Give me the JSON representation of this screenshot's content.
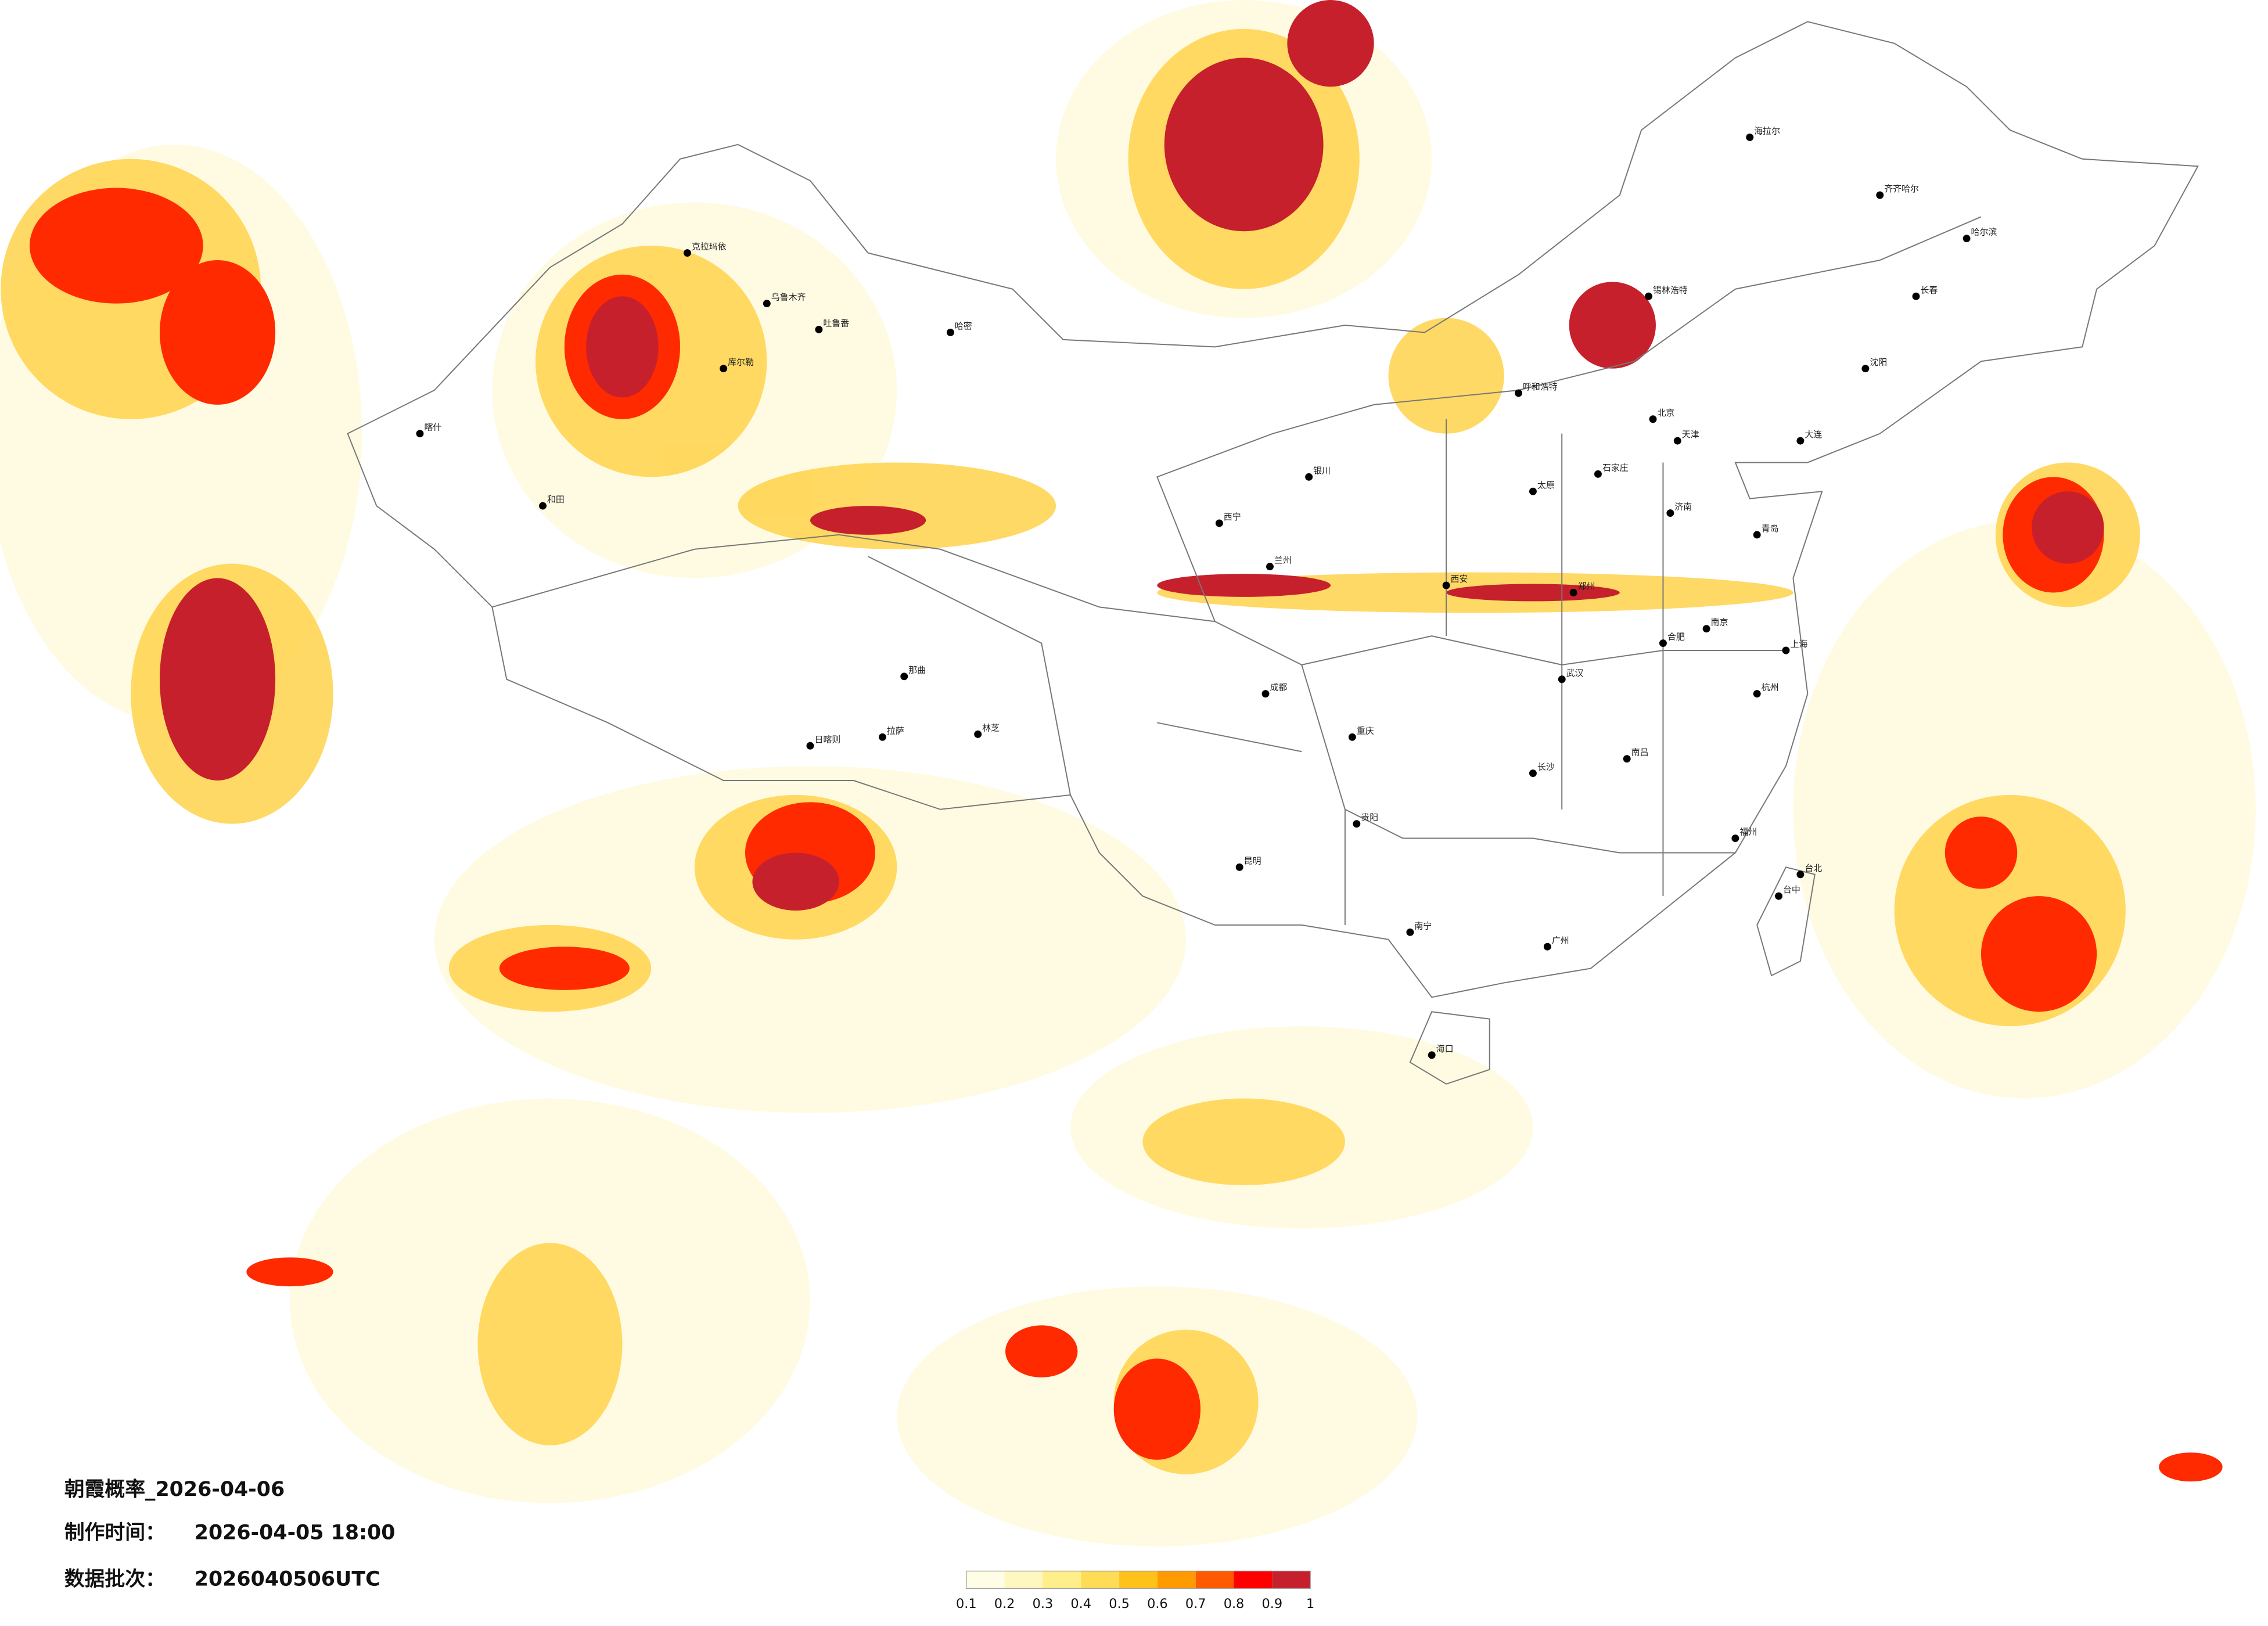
{
  "title": "朝霞概率_2026-04-06",
  "made_label": "制作时间：",
  "made_time": "2026-04-05 18:00",
  "batch_label": "数据批次：",
  "batch": "2026040506UTC",
  "legend": {
    "ticks": [
      0.1,
      0.2,
      0.3,
      0.4,
      0.5,
      0.6,
      0.7,
      0.8,
      0.9,
      1
    ],
    "colors": [
      "#fffde6",
      "#fff7c0",
      "#ffef8a",
      "#ffdc55",
      "#ffc21a",
      "#ff9a00",
      "#ff5a00",
      "#ff0000",
      "#c6202c"
    ]
  },
  "cities": [
    "克拉玛依",
    "乌鲁木齐",
    "吐鲁番",
    "哈密",
    "喀什",
    "和田",
    "库尔勒",
    "日喀则",
    "拉萨",
    "林芝",
    "那曲",
    "西宁",
    "兰州",
    "银川",
    "呼和浩特",
    "北京",
    "天津",
    "石家庄",
    "太原",
    "济南",
    "郑州",
    "西安",
    "武汉",
    "长沙",
    "南昌",
    "合肥",
    "南京",
    "上海",
    "杭州",
    "福州",
    "广州",
    "南宁",
    "海口",
    "昆明",
    "贵阳",
    "成都",
    "重庆",
    "哈尔滨",
    "长春",
    "沈阳",
    "大连",
    "台北",
    "台中",
    "海拉尔",
    "齐齐哈尔",
    "青岛",
    "锡林浩特"
  ]
}
